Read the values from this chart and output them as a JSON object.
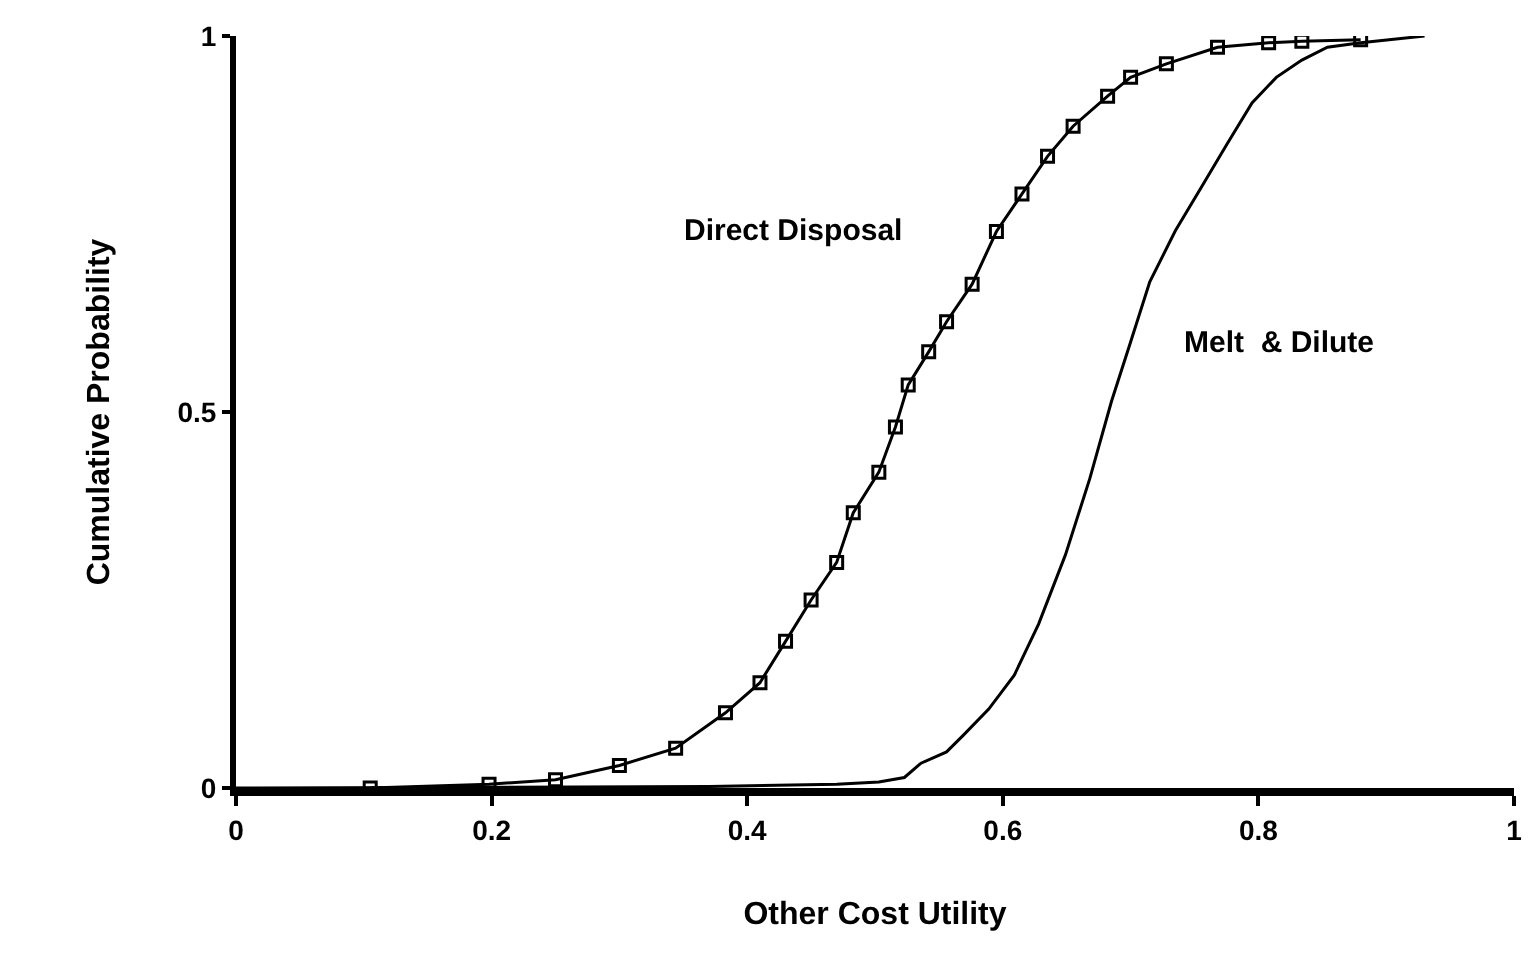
{
  "chart_data": {
    "type": "line",
    "xlabel": "Other Cost Utility",
    "ylabel": "Cumulative Probability",
    "xlim": [
      0,
      1
    ],
    "xticks": [
      0,
      0.2,
      0.4,
      0.6,
      0.8,
      1
    ],
    "ylim": [
      0,
      1
    ],
    "yticks": [
      0,
      0.5,
      1
    ],
    "legend": false,
    "series": [
      {
        "name": "Direct Disposal",
        "color": "#000000",
        "marker": "square",
        "x": [
          0.105,
          0.198,
          0.25,
          0.3,
          0.344,
          0.383,
          0.41,
          0.43,
          0.45,
          0.47,
          0.483,
          0.503,
          0.516,
          0.526,
          0.542,
          0.556,
          0.576,
          0.595,
          0.615,
          0.635,
          0.655,
          0.682,
          0.7,
          0.728,
          0.768,
          0.808,
          0.834,
          0.88
        ],
        "values": [
          0.0,
          0.005,
          0.011,
          0.03,
          0.053,
          0.1,
          0.14,
          0.195,
          0.25,
          0.3,
          0.366,
          0.42,
          0.48,
          0.536,
          0.58,
          0.62,
          0.67,
          0.74,
          0.79,
          0.84,
          0.88,
          0.92,
          0.945,
          0.963,
          0.985,
          0.991,
          0.993,
          0.995
        ]
      },
      {
        "name": "Melt  & Dilute",
        "color": "#000000",
        "marker": "none",
        "x": [
          0,
          0.37,
          0.47,
          0.503,
          0.523,
          0.536,
          0.556,
          0.569,
          0.589,
          0.609,
          0.628,
          0.649,
          0.668,
          0.685,
          0.7,
          0.715,
          0.735,
          0.755,
          0.775,
          0.795,
          0.814,
          0.834,
          0.854,
          0.88,
          0.93
        ],
        "values": [
          0,
          0.002,
          0.005,
          0.008,
          0.014,
          0.033,
          0.048,
          0.07,
          0.105,
          0.15,
          0.218,
          0.31,
          0.411,
          0.514,
          0.593,
          0.673,
          0.741,
          0.798,
          0.855,
          0.911,
          0.945,
          0.968,
          0.985,
          0.991,
          1.0
        ]
      }
    ]
  }
}
